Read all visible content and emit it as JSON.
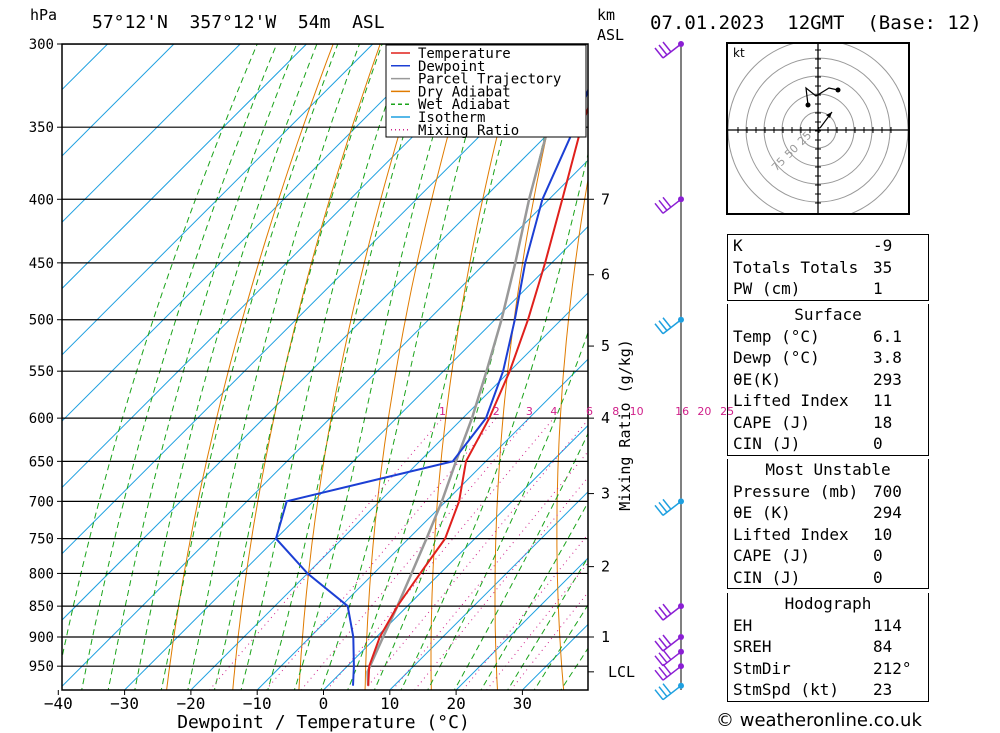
{
  "header": {
    "hpa_label": "hPa",
    "location": "57°12'N  357°12'W  54m  ASL",
    "km_label": "km",
    "asl_label": "ASL",
    "datetime": "07.01.2023  12GMT  (Base: 12)"
  },
  "footer": {
    "copyright": "© weatheronline.co.uk"
  },
  "legend": [
    {
      "label": "Temperature",
      "color": "#e0201c",
      "style": "solid"
    },
    {
      "label": "Dewpoint",
      "color": "#1c3fd4",
      "style": "solid"
    },
    {
      "label": "Parcel Trajectory",
      "color": "#999999",
      "style": "solid"
    },
    {
      "label": "Dry Adiabat",
      "color": "#e07b00",
      "style": "solid"
    },
    {
      "label": "Wet Adiabat",
      "color": "#1aa31a",
      "style": "dashed"
    },
    {
      "label": "Isotherm",
      "color": "#1ea0e0",
      "style": "solid"
    },
    {
      "label": "Mixing Ratio",
      "color": "#d0208a",
      "style": "dotted"
    }
  ],
  "chart_data": {
    "type": "line",
    "xlabel": "Dewpoint / Temperature (°C)",
    "ylabel": "hPa",
    "y2label": "Mixing Ratio (g/kg)",
    "xlim": [
      -40,
      40
    ],
    "ylim": [
      990,
      300
    ],
    "pressure_ticks": [
      300,
      350,
      400,
      450,
      500,
      550,
      600,
      650,
      700,
      750,
      800,
      850,
      900,
      950
    ],
    "temp_ticks": [
      -40,
      -30,
      -20,
      -10,
      0,
      10,
      20,
      30
    ],
    "km_ticks": [
      {
        "label": "1",
        "p": 900
      },
      {
        "label": "2",
        "p": 790
      },
      {
        "label": "3",
        "p": 690
      },
      {
        "label": "4",
        "p": 600
      },
      {
        "label": "5",
        "p": 525
      },
      {
        "label": "6",
        "p": 460
      },
      {
        "label": "7",
        "p": 400
      }
    ],
    "lcl": {
      "label": "LCL",
      "p": 960
    },
    "mixing_ratio_labels": [
      "1",
      "2",
      "3",
      "4",
      "6",
      "8",
      "10",
      "16",
      "20",
      "25"
    ],
    "temperature": [
      {
        "p": 985,
        "t": 6.1
      },
      {
        "p": 950,
        "t": 3.3
      },
      {
        "p": 900,
        "t": 0.5
      },
      {
        "p": 850,
        "t": -1.5
      },
      {
        "p": 800,
        "t": -3
      },
      {
        "p": 750,
        "t": -4.5
      },
      {
        "p": 700,
        "t": -8
      },
      {
        "p": 650,
        "t": -13
      },
      {
        "p": 600,
        "t": -16
      },
      {
        "p": 550,
        "t": -20
      },
      {
        "p": 500,
        "t": -25
      },
      {
        "p": 450,
        "t": -31
      },
      {
        "p": 400,
        "t": -38
      },
      {
        "p": 350,
        "t": -46
      },
      {
        "p": 300,
        "t": -54
      }
    ],
    "dewpoint": [
      {
        "p": 985,
        "t": 3.8
      },
      {
        "p": 950,
        "t": 1
      },
      {
        "p": 900,
        "t": -3.5
      },
      {
        "p": 850,
        "t": -9
      },
      {
        "p": 800,
        "t": -20
      },
      {
        "p": 750,
        "t": -30
      },
      {
        "p": 700,
        "t": -34
      },
      {
        "p": 650,
        "t": -15
      },
      {
        "p": 600,
        "t": -16.5
      },
      {
        "p": 550,
        "t": -21
      },
      {
        "p": 500,
        "t": -27
      },
      {
        "p": 450,
        "t": -34
      },
      {
        "p": 400,
        "t": -41
      },
      {
        "p": 350,
        "t": -47
      },
      {
        "p": 300,
        "t": -55
      }
    ],
    "parcel": [
      {
        "p": 985,
        "t": 6.1
      },
      {
        "p": 960,
        "t": 3.9
      },
      {
        "p": 900,
        "t": 1
      },
      {
        "p": 850,
        "t": -1.5
      },
      {
        "p": 800,
        "t": -4.3
      },
      {
        "p": 750,
        "t": -7.3
      },
      {
        "p": 700,
        "t": -10.6
      },
      {
        "p": 650,
        "t": -14.5
      },
      {
        "p": 600,
        "t": -18.6
      },
      {
        "p": 550,
        "t": -23.5
      },
      {
        "p": 500,
        "t": -29
      },
      {
        "p": 450,
        "t": -35.5
      },
      {
        "p": 400,
        "t": -43
      },
      {
        "p": 350,
        "t": -51
      },
      {
        "p": 300,
        "t": -60
      }
    ],
    "grid": true,
    "legend_position": "top-right"
  },
  "wind_barbs": [
    {
      "p": 300,
      "color": "#8b1fd4"
    },
    {
      "p": 400,
      "color": "#8b1fd4"
    },
    {
      "p": 500,
      "color": "#1ea0e0"
    },
    {
      "p": 700,
      "color": "#1ea0e0"
    },
    {
      "p": 850,
      "color": "#8b1fd4"
    },
    {
      "p": 900,
      "color": "#8b1fd4"
    },
    {
      "p": 925,
      "color": "#8b1fd4"
    },
    {
      "p": 950,
      "color": "#8b1fd4"
    },
    {
      "p": 985,
      "color": "#1ea0e0"
    }
  ],
  "hodograph": {
    "unit_label": "kt",
    "ring_labels": [
      "25",
      "50",
      "75"
    ]
  },
  "stats": {
    "indices": [
      {
        "label": "K",
        "value": "-9"
      },
      {
        "label": "Totals Totals",
        "value": "35"
      },
      {
        "label": "PW (cm)",
        "value": "1"
      }
    ],
    "surface_title": "Surface",
    "surface": [
      {
        "label": "Temp (°C)",
        "value": "6.1"
      },
      {
        "label": "Dewp (°C)",
        "value": "3.8"
      },
      {
        "label": "θE(K)",
        "value": "293"
      },
      {
        "label": "Lifted Index",
        "value": "11"
      },
      {
        "label": "CAPE (J)",
        "value": "18"
      },
      {
        "label": "CIN (J)",
        "value": "0"
      }
    ],
    "unstable_title": "Most Unstable",
    "unstable": [
      {
        "label": "Pressure (mb)",
        "value": "700"
      },
      {
        "label": "θE (K)",
        "value": "294"
      },
      {
        "label": "Lifted Index",
        "value": "10"
      },
      {
        "label": "CAPE (J)",
        "value": "0"
      },
      {
        "label": "CIN (J)",
        "value": "0"
      }
    ],
    "hodo_title": "Hodograph",
    "hodo": [
      {
        "label": "EH",
        "value": "114"
      },
      {
        "label": "SREH",
        "value": "84"
      },
      {
        "label": "StmDir",
        "value": "212°"
      },
      {
        "label": "StmSpd (kt)",
        "value": "23"
      }
    ]
  }
}
